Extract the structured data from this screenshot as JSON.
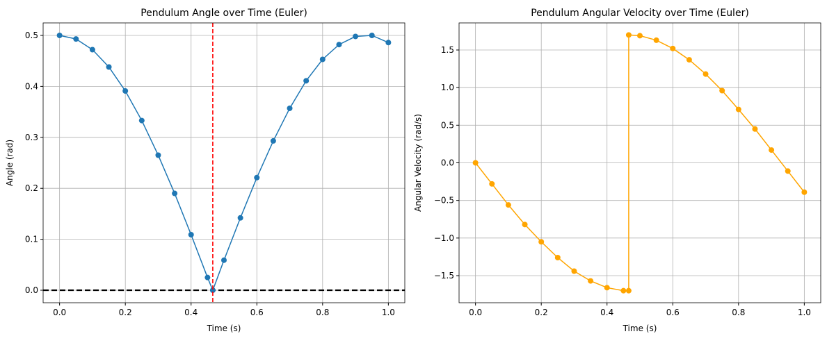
{
  "chart_data": [
    {
      "type": "line",
      "title": "Pendulum Angle over Time (Euler)",
      "xlabel": "Time (s)",
      "ylabel": "Angle (rad)",
      "x": [
        0.0,
        0.05,
        0.1,
        0.15,
        0.2,
        0.25,
        0.3,
        0.35,
        0.4,
        0.45,
        0.466,
        0.5,
        0.55,
        0.6,
        0.65,
        0.7,
        0.75,
        0.8,
        0.85,
        0.9,
        0.95,
        1.0
      ],
      "series": [
        {
          "name": "Angle",
          "color": "#1f77b4",
          "values": [
            0.5,
            0.493,
            0.472,
            0.438,
            0.391,
            0.333,
            0.265,
            0.19,
            0.109,
            0.025,
            0.0,
            0.059,
            0.142,
            0.221,
            0.293,
            0.357,
            0.411,
            0.453,
            0.482,
            0.498,
            0.5,
            0.486
          ]
        }
      ],
      "xlim": [
        -0.05,
        1.05
      ],
      "ylim": [
        -0.0245,
        0.5245
      ],
      "xticks": [
        {
          "value": 0,
          "label": "0.0"
        },
        {
          "value": 0.2,
          "label": "0.2"
        },
        {
          "value": 0.4,
          "label": "0.4"
        },
        {
          "value": 0.6,
          "label": "0.6"
        },
        {
          "value": 0.8,
          "label": "0.8"
        },
        {
          "value": 1,
          "label": "1.0"
        }
      ],
      "yticks": [
        {
          "value": 0,
          "label": "0.0"
        },
        {
          "value": 0.1,
          "label": "0.1"
        },
        {
          "value": 0.2,
          "label": "0.2"
        },
        {
          "value": 0.3,
          "label": "0.3"
        },
        {
          "value": 0.4,
          "label": "0.4"
        },
        {
          "value": 0.5,
          "label": "0.5"
        }
      ],
      "grid": true,
      "hlines": [
        {
          "value": 0,
          "color": "black"
        }
      ],
      "vlines": [
        {
          "value": 0.466,
          "color": "red"
        }
      ]
    },
    {
      "type": "line",
      "title": "Pendulum Angular Velocity over Time (Euler)",
      "xlabel": "Time (s)",
      "ylabel": "Angular Velocity (rad/s)",
      "x": [
        0.0,
        0.05,
        0.1,
        0.15,
        0.2,
        0.25,
        0.3,
        0.35,
        0.4,
        0.45,
        0.466,
        0.466,
        0.5,
        0.55,
        0.6,
        0.65,
        0.7,
        0.75,
        0.8,
        0.85,
        0.9,
        0.95,
        1.0
      ],
      "series": [
        {
          "name": "Angular Velocity",
          "color": "orange",
          "values": [
            0.0,
            -0.28,
            -0.56,
            -0.82,
            -1.05,
            -1.26,
            -1.44,
            -1.57,
            -1.66,
            -1.7,
            -1.7,
            1.7,
            1.69,
            1.63,
            1.52,
            1.37,
            1.18,
            0.96,
            0.71,
            0.45,
            0.17,
            -0.11,
            -0.39
          ]
        }
      ],
      "xlim": [
        -0.05,
        1.05
      ],
      "ylim": [
        -1.86,
        1.86
      ],
      "xticks": [
        {
          "value": 0,
          "label": "0.0"
        },
        {
          "value": 0.2,
          "label": "0.2"
        },
        {
          "value": 0.4,
          "label": "0.4"
        },
        {
          "value": 0.6,
          "label": "0.6"
        },
        {
          "value": 0.8,
          "label": "0.8"
        },
        {
          "value": 1,
          "label": "1.0"
        }
      ],
      "yticks": [
        {
          "value": -1.5,
          "label": "−1.5"
        },
        {
          "value": -1,
          "label": "−1.0"
        },
        {
          "value": -0.5,
          "label": "−0.5"
        },
        {
          "value": 0,
          "label": "0.0"
        },
        {
          "value": 0.5,
          "label": "0.5"
        },
        {
          "value": 1,
          "label": "1.0"
        },
        {
          "value": 1.5,
          "label": "1.5"
        }
      ],
      "grid": true
    }
  ]
}
